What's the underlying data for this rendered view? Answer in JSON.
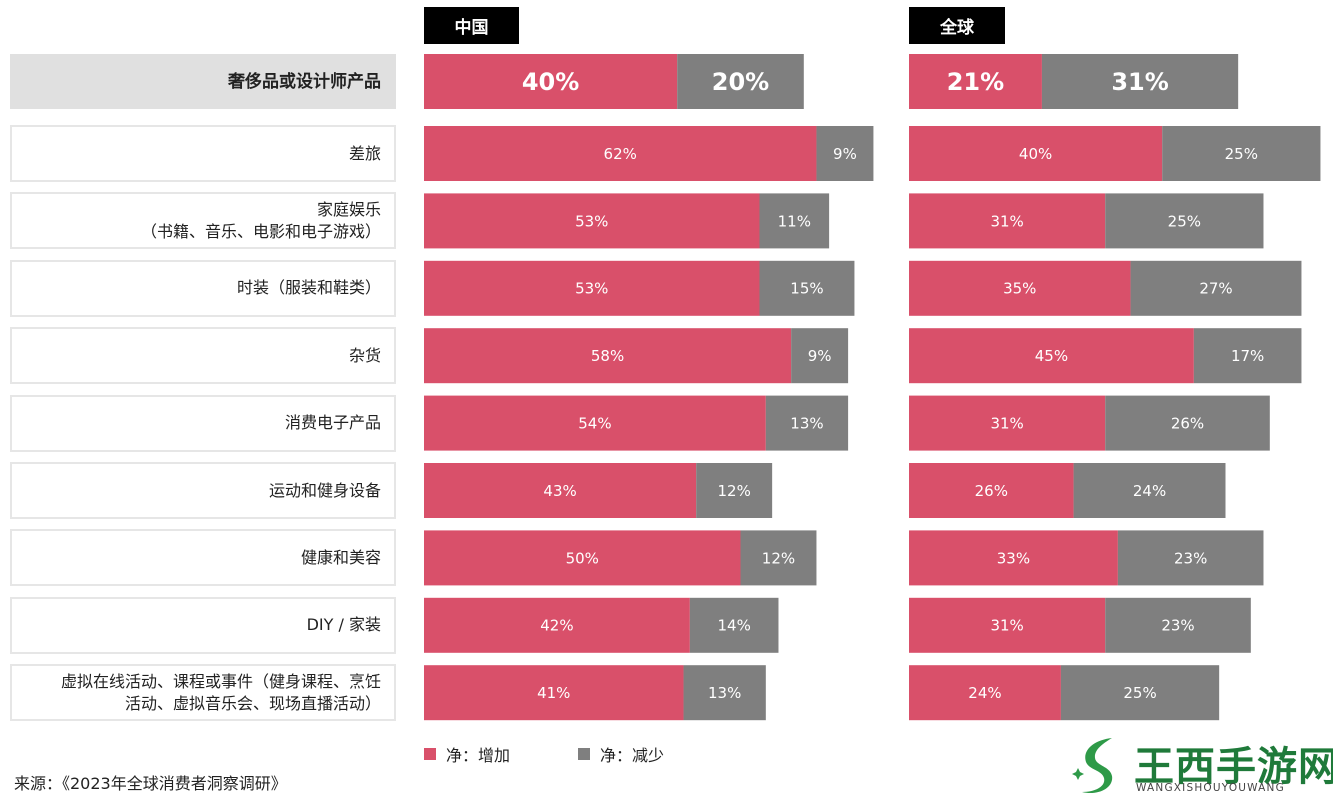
{
  "chart_data": {
    "type": "bar",
    "stacked": true,
    "panels": [
      "中国",
      "全球"
    ],
    "categories": [
      "奢侈品或设计师产品",
      "差旅",
      "家庭娱乐\n（书籍、音乐、电影和电子游戏）",
      "时装（服装和鞋类）",
      "杂货",
      "消费电子产品",
      "运动和健身设备",
      "健康和美容",
      "DIY / 家装",
      "虚拟在线活动、课程或事件（健身课程、烹饪\n活动、虚拟音乐会、现场直播活动）"
    ],
    "series": [
      {
        "name": "净：增加",
        "color": "#d9506a",
        "china": [
          40,
          62,
          53,
          53,
          58,
          54,
          43,
          50,
          42,
          41
        ],
        "global": [
          21,
          40,
          31,
          35,
          45,
          31,
          26,
          33,
          31,
          24
        ]
      },
      {
        "name": "净：减少",
        "color": "#7f7f7f",
        "china": [
          20,
          9,
          11,
          15,
          9,
          13,
          12,
          12,
          14,
          13
        ],
        "global": [
          31,
          25,
          25,
          27,
          17,
          26,
          24,
          23,
          23,
          25
        ]
      }
    ],
    "value_suffix": "%",
    "highlight_category": "奢侈品或设计师产品"
  },
  "headers": {
    "china": "中国",
    "global": "全球"
  },
  "legend": {
    "increase": "净：增加",
    "decrease": "净：减少"
  },
  "source": "来源：《2023年全球消费者洞察调研》",
  "watermark": {
    "title": "王西手游网",
    "subtitle": "WANGXISHOUYOUWANG"
  },
  "colors": {
    "increase": "#d9506a",
    "decrease": "#7f7f7f",
    "header_bg": "#000000",
    "highlight_bg": "#e0e0e0"
  }
}
